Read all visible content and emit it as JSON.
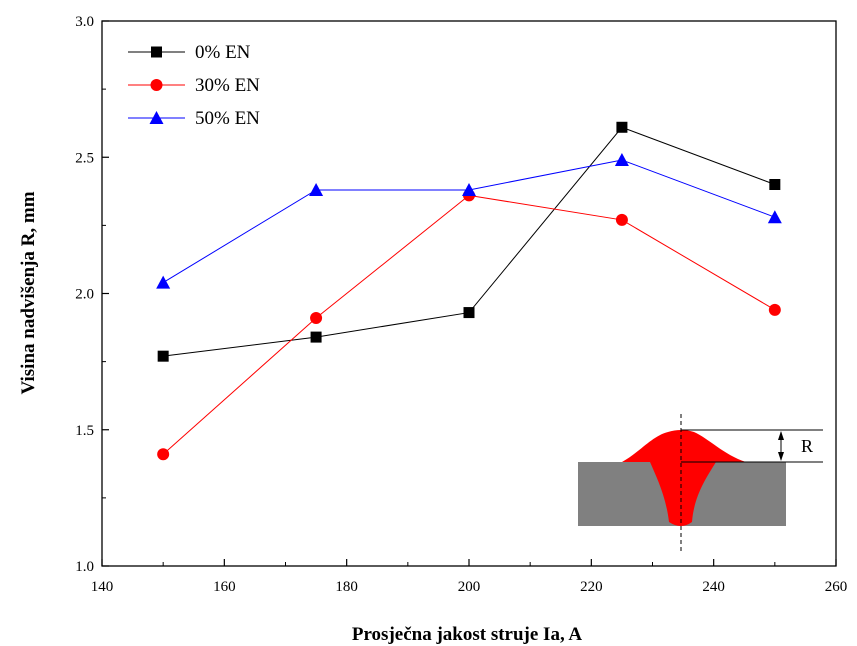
{
  "chart_data": {
    "type": "line",
    "xlabel": "Prosječna jakost struje Ia, A",
    "ylabel": "Visina nadvišenja R, mm",
    "xlim": [
      140,
      260
    ],
    "ylim": [
      1.0,
      3.0
    ],
    "xticks": [
      "140",
      "160",
      "180",
      "200",
      "220",
      "240",
      "260"
    ],
    "yticks": [
      "1.0",
      "1.5",
      "2.0",
      "2.5",
      "3.0"
    ],
    "grid": false,
    "legend_position": "top-left",
    "x": [
      150,
      175,
      200,
      225,
      250
    ],
    "series": [
      {
        "name": "0% EN",
        "color": "#000000",
        "marker": "square",
        "values": [
          1.77,
          1.84,
          1.93,
          2.61,
          2.4
        ]
      },
      {
        "name": "30% EN",
        "color": "#ff0000",
        "marker": "circle",
        "values": [
          1.41,
          1.91,
          2.36,
          2.27,
          1.94
        ]
      },
      {
        "name": "50% EN",
        "color": "#0000ff",
        "marker": "triangle",
        "values": [
          2.04,
          2.38,
          2.38,
          2.49,
          2.28
        ]
      }
    ],
    "inset": {
      "label": "R",
      "weld_color": "#ff0000",
      "plate_color": "#808080"
    }
  }
}
